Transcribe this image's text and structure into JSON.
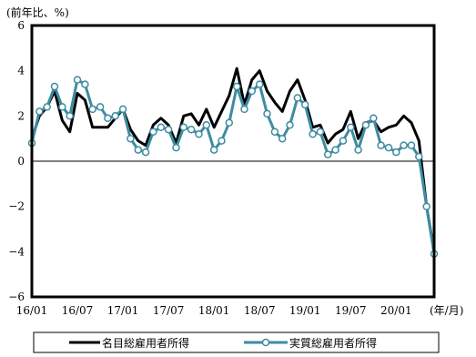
{
  "chart_data": {
    "type": "line",
    "y_unit_label": "(前年比、%)",
    "x_unit_label": "(年/月)",
    "ylim": [
      -6,
      6
    ],
    "yticks": [
      -6,
      -4,
      -2,
      0,
      2,
      4,
      6
    ],
    "x_tick_labels": [
      {
        "label": "16/01",
        "index": 0
      },
      {
        "label": "16/07",
        "index": 6
      },
      {
        "label": "17/01",
        "index": 12
      },
      {
        "label": "17/07",
        "index": 18
      },
      {
        "label": "18/01",
        "index": 24
      },
      {
        "label": "18/07",
        "index": 30
      },
      {
        "label": "19/01",
        "index": 36
      },
      {
        "label": "19/07",
        "index": 42
      },
      {
        "label": "20/01",
        "index": 48
      }
    ],
    "series": [
      {
        "name": "名目総雇用者所得",
        "color": "#000000",
        "marker": false,
        "values": [
          1.0,
          2.0,
          2.4,
          3.1,
          1.8,
          1.3,
          3.0,
          2.7,
          1.5,
          1.5,
          1.5,
          1.9,
          2.3,
          1.4,
          0.9,
          0.7,
          1.6,
          1.9,
          1.6,
          0.8,
          2.0,
          2.1,
          1.6,
          2.3,
          1.5,
          2.2,
          2.9,
          4.1,
          2.5,
          3.6,
          4.0,
          3.1,
          2.6,
          2.2,
          3.1,
          3.6,
          2.7,
          1.5,
          1.6,
          0.8,
          1.2,
          1.4,
          2.2,
          1.0,
          1.7,
          1.8,
          1.3,
          1.5,
          1.6,
          2.0,
          1.7,
          0.9,
          -2.0,
          -4.0
        ]
      },
      {
        "name": "実質総雇用者所得",
        "color": "#3d8ca0",
        "marker": true,
        "values": [
          0.8,
          2.2,
          2.4,
          3.3,
          2.4,
          2.0,
          3.6,
          3.4,
          2.3,
          2.4,
          1.9,
          2.0,
          2.3,
          1.0,
          0.5,
          0.4,
          1.3,
          1.5,
          1.4,
          0.6,
          1.5,
          1.4,
          1.2,
          1.6,
          0.5,
          0.9,
          1.7,
          3.3,
          2.3,
          3.1,
          3.4,
          2.1,
          1.3,
          1.0,
          1.6,
          2.8,
          2.5,
          1.2,
          1.3,
          0.3,
          0.5,
          0.9,
          1.5,
          0.5,
          1.6,
          1.9,
          0.7,
          0.6,
          0.4,
          0.7,
          0.7,
          0.2,
          -2.0,
          -4.1
        ]
      }
    ]
  }
}
